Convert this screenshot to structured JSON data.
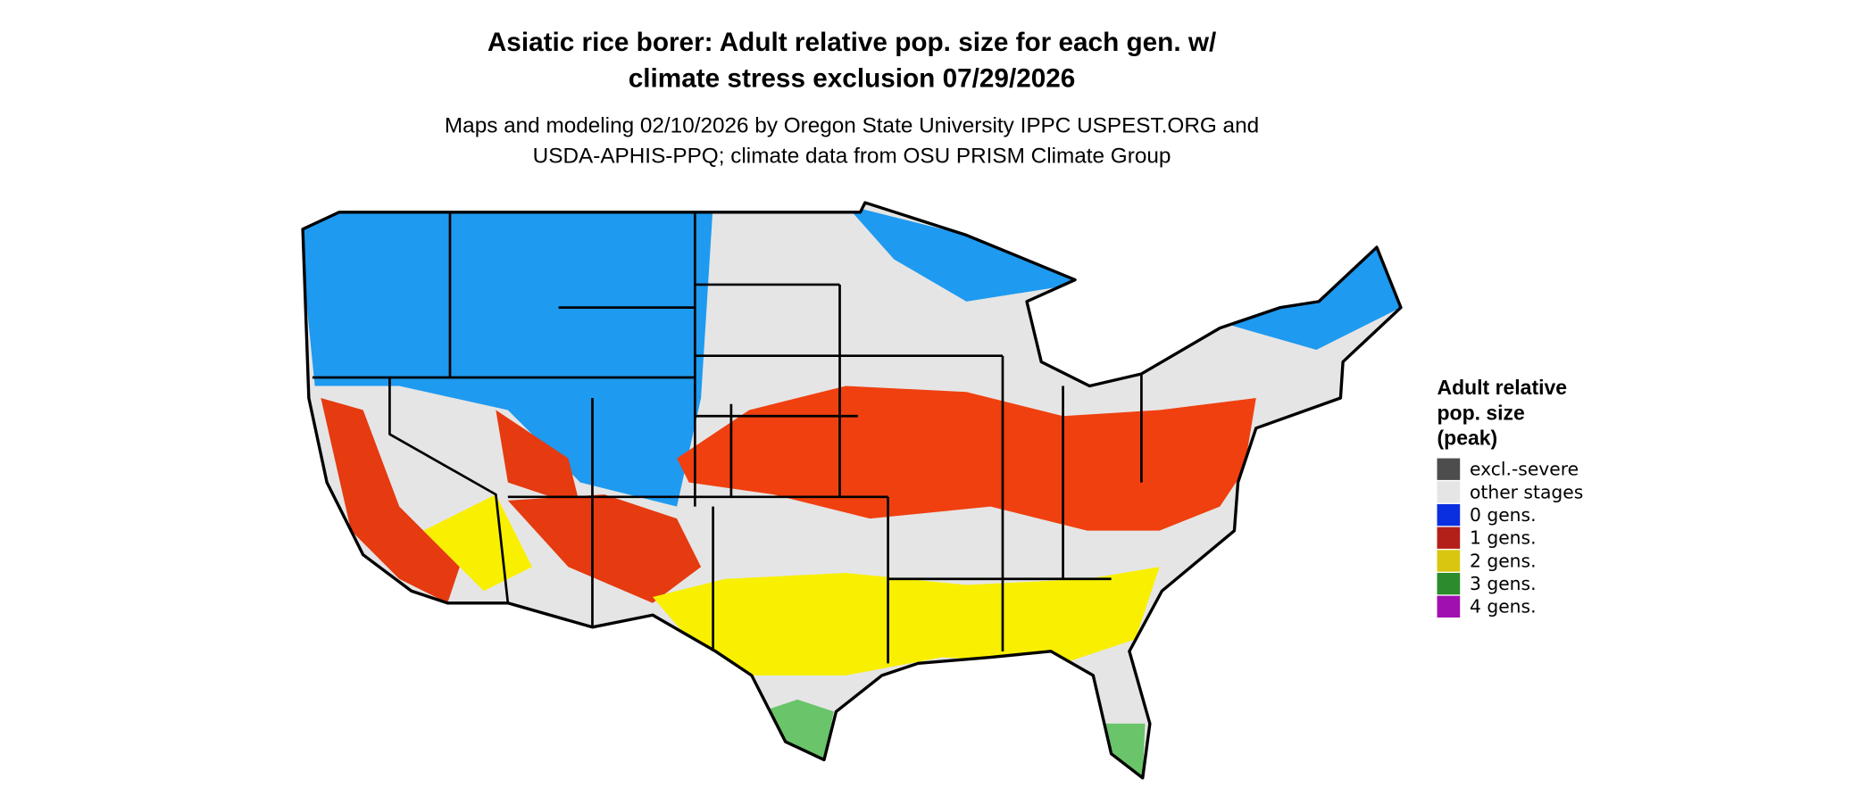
{
  "header": {
    "title": [
      "Asiatic rice borer: Adult relative pop. size for each gen. w/",
      "climate stress exclusion 07/29/2026"
    ],
    "subtitle": [
      "Maps and modeling 02/10/2026 by Oregon State University IPPC USPEST.ORG and",
      "USDA-APHIS-PPQ; climate data from OSU PRISM Climate Group"
    ]
  },
  "legend": {
    "title": [
      "Adult relative",
      "pop. size",
      "(peak)"
    ],
    "items": [
      {
        "label": "excl.-severe",
        "color": "#4d4d4d"
      },
      {
        "label": "other stages",
        "color": "#e5e5e5"
      },
      {
        "label": "0 gens.",
        "color": "#0a2fe0"
      },
      {
        "label": "1 gens.",
        "color": "#b3201a"
      },
      {
        "label": "2 gens.",
        "color": "#d9c70f"
      },
      {
        "label": "3 gens.",
        "color": "#2a8c2a"
      },
      {
        "label": "4 gens.",
        "color": "#a010b0"
      }
    ]
  }
}
